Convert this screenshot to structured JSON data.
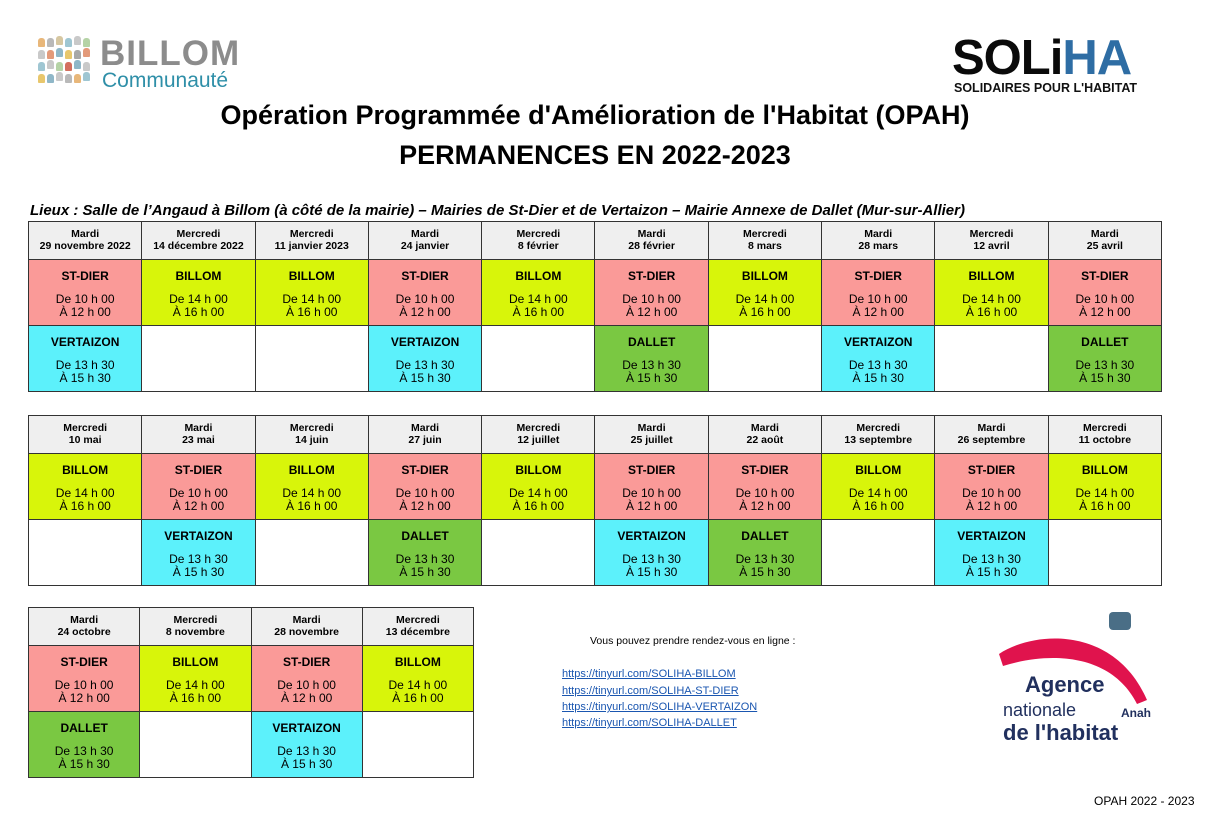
{
  "logos": {
    "billom_name": "BILLOM",
    "billom_sub": "Communauté",
    "soliha_black": "SOLi",
    "soliha_blue": "HA",
    "soliha_sub": "SOLIDAIRES POUR L'HABITAT",
    "anah_line1": "Agence",
    "anah_line2": "nationale",
    "anah_line3": "de l'habitat",
    "anah_abbr": "Anah"
  },
  "header": {
    "title": "Opération Programmée d'Amélioration de l'Habitat (OPAH)",
    "subtitle": "PERMANENCES EN 2022-2023",
    "lieux": "Lieux : Salle de l’Angaud à Billom (à côté de la mairie) – Mairies de St-Dier et de Vertaizon – Mairie Annexe de Dallet (Mur-sur-Allier)"
  },
  "colors": {
    "st_dier": "#fa9a98",
    "billom": "#d8f50a",
    "vertaizon": "#5cf1fb",
    "dallet": "#7ac842"
  },
  "tables": [
    {
      "days": [
        {
          "day": "Mardi",
          "date": "29 novembre 2022"
        },
        {
          "day": "Mercredi",
          "date": "14 décembre 2022"
        },
        {
          "day": "Mercredi",
          "date": "11 janvier 2023"
        },
        {
          "day": "Mardi",
          "date": "24 janvier"
        },
        {
          "day": "Mercredi",
          "date": "8 février"
        },
        {
          "day": "Mardi",
          "date": "28 février"
        },
        {
          "day": "Mercredi",
          "date": "8 mars"
        },
        {
          "day": "Mardi",
          "date": "28 mars"
        },
        {
          "day": "Mercredi",
          "date": "12 avril"
        },
        {
          "day": "Mardi",
          "date": "25 avril"
        }
      ],
      "morning": [
        {
          "place": "ST-DIER",
          "from": "De 10 h 00",
          "to": "À 12 h 00"
        },
        {
          "place": "BILLOM",
          "from": "De 14 h 00",
          "to": "À 16 h 00"
        },
        {
          "place": "BILLOM",
          "from": "De 14 h 00",
          "to": "À 16 h 00"
        },
        {
          "place": "ST-DIER",
          "from": "De 10 h 00",
          "to": "À 12 h 00"
        },
        {
          "place": "BILLOM",
          "from": "De 14 h 00",
          "to": "À 16 h 00"
        },
        {
          "place": "ST-DIER",
          "from": "De 10 h 00",
          "to": "À 12 h 00"
        },
        {
          "place": "BILLOM",
          "from": "De 14 h 00",
          "to": "À 16 h 00"
        },
        {
          "place": "ST-DIER",
          "from": "De 10 h 00",
          "to": "À 12 h 00"
        },
        {
          "place": "BILLOM",
          "from": "De 14 h 00",
          "to": "À 16 h 00"
        },
        {
          "place": "ST-DIER",
          "from": "De 10 h 00",
          "to": "À 12 h 00"
        }
      ],
      "afternoon": [
        {
          "place": "VERTAIZON",
          "from": "De 13 h 30",
          "to": "À 15 h 30"
        },
        null,
        null,
        {
          "place": "VERTAIZON",
          "from": "De 13 h 30",
          "to": "À 15 h 30"
        },
        null,
        {
          "place": "DALLET",
          "from": "De 13 h 30",
          "to": "À 15 h 30"
        },
        null,
        {
          "place": "VERTAIZON",
          "from": "De 13 h 30",
          "to": "À 15 h 30"
        },
        null,
        {
          "place": "DALLET",
          "from": "De 13 h 30",
          "to": "À 15 h 30"
        }
      ]
    },
    {
      "days": [
        {
          "day": "Mercredi",
          "date": "10 mai"
        },
        {
          "day": "Mardi",
          "date": "23 mai"
        },
        {
          "day": "Mercredi",
          "date": "14 juin"
        },
        {
          "day": "Mardi",
          "date": "27 juin"
        },
        {
          "day": "Mercredi",
          "date": "12 juillet"
        },
        {
          "day": "Mardi",
          "date": "25 juillet"
        },
        {
          "day": "Mardi",
          "date": "22 août"
        },
        {
          "day": "Mercredi",
          "date": "13 septembre"
        },
        {
          "day": "Mardi",
          "date": "26 septembre"
        },
        {
          "day": "Mercredi",
          "date": "11 octobre"
        }
      ],
      "morning": [
        {
          "place": "BILLOM",
          "from": "De 14 h 00",
          "to": "À 16 h 00"
        },
        {
          "place": "ST-DIER",
          "from": "De 10 h 00",
          "to": "À 12 h 00"
        },
        {
          "place": "BILLOM",
          "from": "De 14 h 00",
          "to": "À 16 h 00"
        },
        {
          "place": "ST-DIER",
          "from": "De 10 h 00",
          "to": "À 12 h 00"
        },
        {
          "place": "BILLOM",
          "from": "De 14 h 00",
          "to": "À 16 h 00"
        },
        {
          "place": "ST-DIER",
          "from": "De 10 h 00",
          "to": "À 12 h 00"
        },
        {
          "place": "ST-DIER",
          "from": "De 10 h 00",
          "to": "À 12 h 00"
        },
        {
          "place": "BILLOM",
          "from": "De 14 h 00",
          "to": "À 16 h 00"
        },
        {
          "place": "ST-DIER",
          "from": "De 10 h 00",
          "to": "À 12 h 00"
        },
        {
          "place": "BILLOM",
          "from": "De 14 h 00",
          "to": "À 16 h 00"
        }
      ],
      "afternoon": [
        null,
        {
          "place": "VERTAIZON",
          "from": "De 13 h 30",
          "to": "À 15 h 30"
        },
        null,
        {
          "place": "DALLET",
          "from": "De 13 h 30",
          "to": "À 15 h 30"
        },
        null,
        {
          "place": "VERTAIZON",
          "from": "De 13 h 30",
          "to": "À 15 h 30"
        },
        {
          "place": "DALLET",
          "from": "De 13 h 30",
          "to": "À 15 h 30"
        },
        null,
        {
          "place": "VERTAIZON",
          "from": "De 13 h 30",
          "to": "À 15 h 30"
        },
        null
      ]
    },
    {
      "days": [
        {
          "day": "Mardi",
          "date": "24 octobre"
        },
        {
          "day": "Mercredi",
          "date": "8 novembre"
        },
        {
          "day": "Mardi",
          "date": "28 novembre"
        },
        {
          "day": "Mercredi",
          "date": "13 décembre"
        }
      ],
      "morning": [
        {
          "place": "ST-DIER",
          "from": "De 10 h 00",
          "to": "À 12 h 00"
        },
        {
          "place": "BILLOM",
          "from": "De 14 h 00",
          "to": "À 16 h 00"
        },
        {
          "place": "ST-DIER",
          "from": "De 10 h 00",
          "to": "À 12 h 00"
        },
        {
          "place": "BILLOM",
          "from": "De 14 h 00",
          "to": "À 16 h 00"
        }
      ],
      "afternoon": [
        {
          "place": "DALLET",
          "from": "De 13 h 30",
          "to": "À 15 h 30"
        },
        null,
        {
          "place": "VERTAIZON",
          "from": "De 13 h 30",
          "to": "À 15 h 30"
        },
        null
      ]
    }
  ],
  "rdv": {
    "intro": "Vous pouvez prendre rendez-vous en ligne :",
    "links": [
      "https://tinyurl.com/SOLIHA-BILLOM",
      "https://tinyurl.com/SOLIHA-ST-DIER",
      "https://tinyurl.com/SOLIHA-VERTAIZON",
      "https://tinyurl.com/SOLIHA-DALLET"
    ]
  },
  "footer": "OPAH 2022 - 2023"
}
